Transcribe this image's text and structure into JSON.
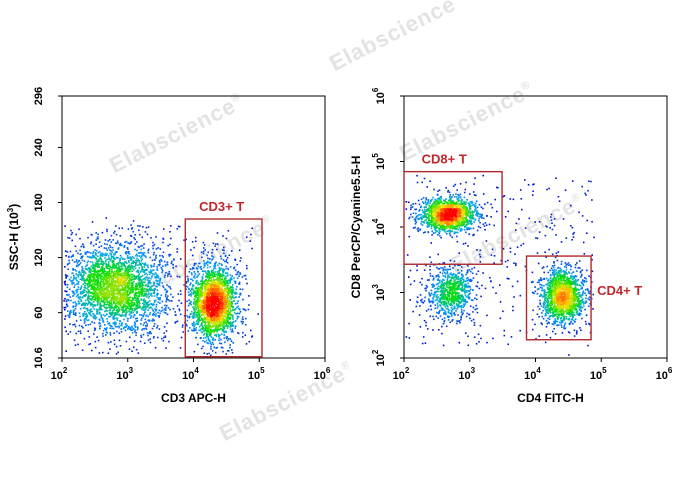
{
  "watermark": {
    "text": "Elabscience",
    "mark": "®"
  },
  "colors": {
    "gate": "#b0282d",
    "gate_label": "#c0282d",
    "density": [
      "#0000c8",
      "#00a0ff",
      "#00e000",
      "#ffe000",
      "#ff0000"
    ]
  },
  "chart_data": [
    {
      "type": "scatter",
      "subtype": "flow-cytometry-density-dotplot",
      "xlabel": "CD3 APC-H",
      "ylabel": "SSC-H (10³)",
      "xscale": "log",
      "yscale": "linear",
      "xlim": [
        100,
        1000000
      ],
      "ylim": [
        10.6,
        296
      ],
      "xticks": [
        {
          "v": 100,
          "b": "10",
          "e": "2"
        },
        {
          "v": 1000,
          "b": "10",
          "e": "3"
        },
        {
          "v": 10000,
          "b": "10",
          "e": "4"
        },
        {
          "v": 100000,
          "b": "10",
          "e": "5"
        },
        {
          "v": 1000000,
          "b": "10",
          "e": "6"
        }
      ],
      "yticks": [
        {
          "v": 10.6,
          "t": "10.6"
        },
        {
          "v": 60,
          "t": "60"
        },
        {
          "v": 120,
          "t": "120"
        },
        {
          "v": 180,
          "t": "180"
        },
        {
          "v": 240,
          "t": "240"
        },
        {
          "v": 296,
          "t": "296"
        }
      ],
      "populations": [
        {
          "x_center": 630,
          "y_center": 88,
          "x_spread_decades": 0.38,
          "y_spread": 23,
          "events": 2600
        },
        {
          "x_center": 20000,
          "y_center": 72,
          "x_spread_decades": 0.17,
          "y_spread": 20,
          "events": 2100
        }
      ],
      "gates": [
        {
          "label": "CD3+ T",
          "x_range": [
            7500,
            110000
          ],
          "y_range": [
            12,
            162
          ],
          "label_position": "above"
        }
      ]
    },
    {
      "type": "scatter",
      "subtype": "flow-cytometry-density-dotplot",
      "xlabel": "CD4 FITC-H",
      "ylabel": "CD8 PerCP/Cyanine5.5-H",
      "xscale": "log",
      "yscale": "log",
      "xlim": [
        100,
        1000000
      ],
      "ylim": [
        100,
        1000000
      ],
      "xticks": [
        {
          "v": 100,
          "b": "10",
          "e": "2"
        },
        {
          "v": 1000,
          "b": "10",
          "e": "3"
        },
        {
          "v": 10000,
          "b": "10",
          "e": "4"
        },
        {
          "v": 100000,
          "b": "10",
          "e": "5"
        },
        {
          "v": 1000000,
          "b": "10",
          "e": "6"
        }
      ],
      "yticks": [
        {
          "v": 100,
          "b": "10",
          "e": "2"
        },
        {
          "v": 1000,
          "b": "10",
          "e": "3"
        },
        {
          "v": 10000,
          "b": "10",
          "e": "4"
        },
        {
          "v": 100000,
          "b": "10",
          "e": "5"
        },
        {
          "v": 1000000,
          "b": "10",
          "e": "6"
        }
      ],
      "populations": [
        {
          "x_center": 450,
          "y_center": 16000,
          "x_spread_decades": 0.22,
          "y_spread_decades": 0.13,
          "events": 1500
        },
        {
          "x_center": 500,
          "y_center": 1000,
          "x_spread_decades": 0.17,
          "y_spread_decades": 0.2,
          "events": 700
        },
        {
          "x_center": 25000,
          "y_center": 900,
          "x_spread_decades": 0.16,
          "y_spread_decades": 0.2,
          "events": 1400
        }
      ],
      "gates": [
        {
          "label": "CD8+ T",
          "x_range": [
            100,
            3100
          ],
          "y_range": [
            2700,
            70000
          ],
          "label_position": "above"
        },
        {
          "label": "CD4+ T",
          "x_range": [
            7300,
            70000
          ],
          "y_range": [
            190,
            3600
          ],
          "label_position": "right"
        }
      ]
    }
  ]
}
